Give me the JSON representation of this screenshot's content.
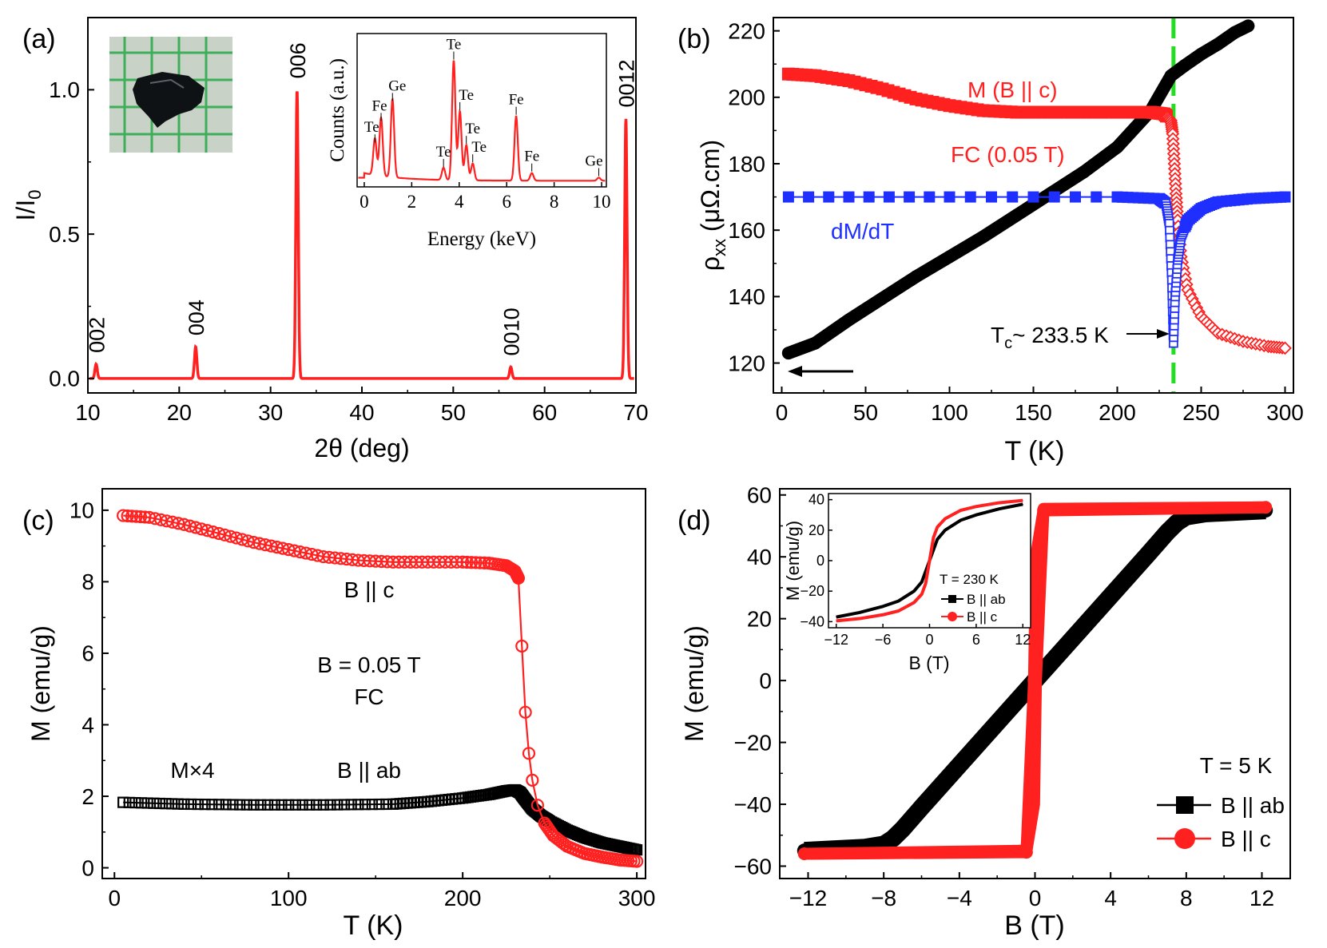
{
  "colors": {
    "red": "#ff2020",
    "black": "#000000",
    "blue": "#1f2fff",
    "green": "#22dd22",
    "axis": "#000000"
  },
  "chart_data": [
    {
      "panel_label": "(a)",
      "type": "line",
      "xlabel": "2θ (deg)",
      "ylabel": "I/I",
      "ylabel_sub": "0",
      "xlim": [
        10,
        70
      ],
      "ylim": [
        -0.05,
        1.25
      ],
      "xticks": [
        10,
        20,
        30,
        40,
        50,
        60,
        70
      ],
      "yticks": [
        0.0,
        0.5,
        1.0
      ],
      "ytick_labels": [
        "0.0",
        "0.5",
        "1.0"
      ],
      "peaks": [
        {
          "label": "002",
          "x": 10.9,
          "y": 0.05
        },
        {
          "label": "004",
          "x": 21.8,
          "y": 0.11
        },
        {
          "label": "006",
          "x": 32.9,
          "y": 1.0
        },
        {
          "label": "0010",
          "x": 56.3,
          "y": 0.04
        },
        {
          "label": "0012",
          "x": 68.9,
          "y": 0.9
        }
      ],
      "inset": {
        "type": "line",
        "xlabel": "Energy (keV)",
        "ylabel": "Counts (a.u.)",
        "xlim": [
          -0.3,
          10.2
        ],
        "ylim": [
          0,
          1.0
        ],
        "xticks": [
          0,
          2,
          4,
          6,
          8,
          10
        ],
        "peaks": [
          {
            "label": "Te",
            "x": 0.45,
            "y": 0.28
          },
          {
            "label": "Fe",
            "x": 0.71,
            "y": 0.42
          },
          {
            "label": "Ge",
            "x": 1.19,
            "y": 0.55
          },
          {
            "label": "Te",
            "x": 3.34,
            "y": 0.12
          },
          {
            "label": "Te",
            "x": 3.77,
            "y": 0.82
          },
          {
            "label": "Te",
            "x": 4.03,
            "y": 0.49
          },
          {
            "label": "Te",
            "x": 4.3,
            "y": 0.27
          },
          {
            "label": "Te",
            "x": 4.57,
            "y": 0.15
          },
          {
            "label": "Fe",
            "x": 6.4,
            "y": 0.46
          },
          {
            "label": "Fe",
            "x": 7.06,
            "y": 0.09
          },
          {
            "label": "Ge",
            "x": 9.88,
            "y": 0.06
          }
        ]
      }
    },
    {
      "panel_label": "(b)",
      "type": "line",
      "xlabel": "T (K)",
      "ylabel": "ρ",
      "ylabel_sub": "xx",
      "ylabel_unit": " (μΩ.cm)",
      "xlim": [
        -5,
        305
      ],
      "ylim": [
        111,
        224
      ],
      "xticks": [
        0,
        50,
        100,
        150,
        200,
        250,
        300
      ],
      "yticks": [
        120,
        140,
        160,
        180,
        200,
        220
      ],
      "series": [
        {
          "name": "ρxx",
          "x": [
            4,
            20,
            40,
            60,
            80,
            100,
            120,
            140,
            160,
            180,
            200,
            220,
            232,
            240,
            250,
            260,
            270,
            278
          ],
          "y": [
            123,
            126,
            133,
            139.5,
            146,
            152,
            158,
            164.5,
            171,
            177.5,
            185,
            196,
            206.5,
            209.5,
            213,
            216,
            219.5,
            221.5
          ]
        },
        {
          "name": "M (B || c)",
          "x": [
            4,
            20,
            40,
            60,
            80,
            100,
            120,
            140,
            160,
            180,
            200,
            220,
            228,
            232,
            233,
            234,
            235,
            236,
            238,
            242,
            250,
            260,
            275,
            290,
            300
          ],
          "y": [
            207,
            206.5,
            205,
            202.5,
            199.5,
            197.5,
            196,
            195.5,
            195.5,
            195.5,
            195.5,
            195.5,
            195,
            193,
            189,
            180,
            171,
            163,
            152,
            142,
            134,
            129,
            126.5,
            125,
            124.5
          ]
        },
        {
          "name": "dM/dT",
          "x": [
            4,
            100,
            200,
            225,
            229,
            231,
            232.5,
            233.5,
            234.5,
            236,
            238,
            242,
            250,
            260,
            280,
            300
          ],
          "y": [
            170,
            170,
            170,
            169.5,
            168,
            162,
            145,
            126,
            140,
            151,
            158,
            163,
            166.5,
            168.5,
            169.5,
            170
          ]
        }
      ],
      "annotations": {
        "m_label": "M (B || c)",
        "fc_label": "FC (0.05 T)",
        "dmdt_label": "dM/dT",
        "tc_prefix": "T",
        "tc_sub": "c",
        "tc_value": "~ 233.5 K",
        "tc_x": 233.5
      }
    },
    {
      "panel_label": "(c)",
      "type": "scatter",
      "xlabel": "T (K)",
      "ylabel": "M (emu/g)",
      "xlim": [
        -7,
        305
      ],
      "ylim": [
        -0.3,
        10.6
      ],
      "xticks": [
        0,
        100,
        200,
        300
      ],
      "yticks": [
        0,
        2,
        4,
        6,
        8,
        10
      ],
      "series": [
        {
          "name": "B || c",
          "x": [
            5,
            20,
            40,
            60,
            80,
            100,
            120,
            140,
            160,
            180,
            200,
            215,
            225,
            230,
            232,
            234,
            236,
            238,
            240,
            243,
            247,
            252,
            260,
            270,
            280,
            290,
            300
          ],
          "y": [
            9.85,
            9.8,
            9.6,
            9.35,
            9.1,
            8.9,
            8.7,
            8.6,
            8.55,
            8.55,
            8.55,
            8.52,
            8.45,
            8.3,
            8.1,
            6.2,
            4.35,
            3.2,
            2.45,
            1.75,
            1.25,
            0.9,
            0.6,
            0.4,
            0.3,
            0.22,
            0.18
          ]
        },
        {
          "name": "B || ab",
          "x": [
            5,
            40,
            80,
            120,
            160,
            180,
            200,
            215,
            225,
            230,
            233,
            236,
            240,
            245,
            250,
            260,
            270,
            280,
            290,
            300
          ],
          "y": [
            1.83,
            1.78,
            1.76,
            1.76,
            1.78,
            1.85,
            1.95,
            2.05,
            2.15,
            2.18,
            2.1,
            1.9,
            1.65,
            1.45,
            1.3,
            1.05,
            0.85,
            0.7,
            0.6,
            0.5
          ]
        }
      ],
      "annotations": {
        "c_label": "B || c",
        "field_label": "B = 0.05 T",
        "fc_label": "FC",
        "mx4_label": "M×4",
        "ab_label": "B || ab"
      }
    },
    {
      "panel_label": "(d)",
      "type": "line",
      "xlabel": "B (T)",
      "ylabel": "M (emu/g)",
      "xlim": [
        -13.5,
        13.5
      ],
      "ylim": [
        -64,
        62
      ],
      "xticks": [
        -12,
        -8,
        -4,
        0,
        4,
        8,
        12
      ],
      "xtick_labels": [
        "−12",
        "−8",
        "−4",
        "0",
        "4",
        "8",
        "12"
      ],
      "yticks": [
        -60,
        -40,
        -20,
        0,
        20,
        40,
        60
      ],
      "ytick_labels": [
        "−60",
        "−40",
        "−20",
        "0",
        "20",
        "40",
        "60"
      ],
      "series": [
        {
          "name": "B || ab",
          "x": [
            -12.2,
            -9,
            -8,
            -7.5,
            -7,
            -6,
            6,
            7,
            7.5,
            8,
            9,
            12.2
          ],
          "y": [
            -55,
            -54,
            -53,
            -51,
            -48,
            -41,
            41,
            48,
            51,
            53,
            54,
            55
          ]
        },
        {
          "name": "B || c",
          "x": [
            -12.2,
            -0.45,
            -0.05,
            0.05,
            0.45,
            12.2
          ],
          "y": [
            -56,
            -55.5,
            0,
            40,
            55,
            56
          ]
        }
      ],
      "legend": {
        "title": "T = 5 K",
        "entries": [
          "B || ab",
          "B || c"
        ],
        "position": "bottom-right"
      },
      "inset": {
        "type": "line",
        "xlabel": "B (T)",
        "ylabel": "M (emu/g)",
        "xlim": [
          -13,
          13
        ],
        "ylim": [
          -44,
          44
        ],
        "xticks": [
          -12,
          -6,
          0,
          6,
          12
        ],
        "yticks": [
          -40,
          -20,
          0,
          20,
          40
        ],
        "series": [
          {
            "name": "B || ab",
            "x": [
              -12,
              -9,
              -6,
              -4,
              -2,
              -1,
              0,
              1,
              2,
              4,
              6,
              9,
              12
            ],
            "y": [
              -37,
              -34,
              -30,
              -26.5,
              -20,
              -14,
              0,
              14,
              20,
              26.5,
              30,
              34,
              37
            ]
          },
          {
            "name": "B || c",
            "x": [
              -12,
              -9,
              -6,
              -4,
              -2,
              -1,
              -0.5,
              0,
              0.5,
              1,
              2,
              4,
              6,
              9,
              12
            ],
            "y": [
              -39.5,
              -38,
              -35.5,
              -33,
              -27.5,
              -22,
              -15,
              0,
              15,
              22,
              27.5,
              33,
              35.5,
              38,
              39.5
            ]
          }
        ],
        "legend": {
          "title": "T = 230 K",
          "entries": [
            "B || ab",
            "B || c"
          ]
        }
      }
    }
  ]
}
